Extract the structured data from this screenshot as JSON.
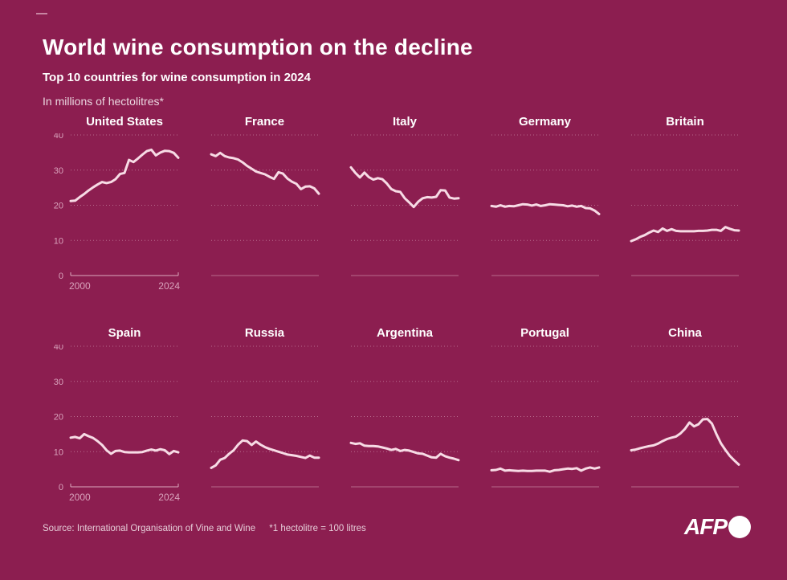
{
  "header": {
    "title": "World wine consumption on the decline",
    "subtitle": "Top 10 countries for wine consumption in 2024",
    "unit_note": "In millions of hectolitres*"
  },
  "footer": {
    "source": "Source: International Organisation of Vine and Wine",
    "note": "*1 hectolitre = 100 litres",
    "logo_text": "AFP"
  },
  "colors": {
    "background": "#8C1E50",
    "line": "#F7DBE5",
    "grid": "#E3B8CA",
    "axis_label": "#D9A3BC"
  },
  "chart_data": {
    "type": "line",
    "title": "Top 10 countries for wine consumption in 2024",
    "ylabel": "Millions of hectolitres",
    "ylim": [
      0,
      40
    ],
    "yticks": [
      0,
      10,
      20,
      30,
      40
    ],
    "x_start": 2000,
    "x_end": 2024,
    "xticks": [
      "2000",
      "2024"
    ],
    "grid": "dotted horizontal gridlines, solid baseline",
    "legend_position": "none",
    "layout": "2 rows x 5 columns of small multiples; y-axis and x-axis labels shown only on first chart of each row",
    "series": [
      {
        "name": "United States",
        "values": [
          21.2,
          21.3,
          22.3,
          23.2,
          24.2,
          25.1,
          25.9,
          26.6,
          26.3,
          26.6,
          27.4,
          28.9,
          29.2,
          32.9,
          32.3,
          33.3,
          34.4,
          35.4,
          35.8,
          34.2,
          35.0,
          35.5,
          35.4,
          34.9,
          33.5
        ]
      },
      {
        "name": "France",
        "values": [
          34.5,
          34.0,
          34.9,
          34.0,
          33.6,
          33.4,
          33.0,
          32.2,
          31.2,
          30.4,
          29.6,
          29.2,
          28.8,
          28.1,
          27.5,
          29.4,
          29.0,
          27.6,
          26.7,
          26.1,
          24.6,
          25.3,
          25.4,
          24.8,
          23.3
        ]
      },
      {
        "name": "Italy",
        "values": [
          30.8,
          29.2,
          27.9,
          29.3,
          28.0,
          27.3,
          27.7,
          27.4,
          26.2,
          24.6,
          24.0,
          23.8,
          22.0,
          20.8,
          19.5,
          21.0,
          22.0,
          22.3,
          22.2,
          22.4,
          24.3,
          24.2,
          22.2,
          21.9,
          22.0
        ]
      },
      {
        "name": "Germany",
        "values": [
          19.8,
          19.6,
          20.0,
          19.6,
          19.8,
          19.7,
          20.0,
          20.3,
          20.2,
          19.9,
          20.2,
          19.8,
          20.0,
          20.3,
          20.2,
          20.1,
          20.0,
          19.7,
          19.9,
          19.6,
          19.8,
          19.2,
          19.1,
          18.5,
          17.5
        ]
      },
      {
        "name": "Britain",
        "values": [
          9.8,
          10.3,
          11.0,
          11.5,
          12.2,
          12.8,
          12.4,
          13.4,
          12.7,
          13.2,
          12.7,
          12.6,
          12.6,
          12.6,
          12.6,
          12.7,
          12.7,
          12.8,
          13.0,
          13.0,
          12.7,
          13.8,
          13.3,
          12.9,
          12.8
        ]
      },
      {
        "name": "Spain",
        "values": [
          14.0,
          14.2,
          13.8,
          15.0,
          14.4,
          13.9,
          13.0,
          11.9,
          10.4,
          9.4,
          10.2,
          10.3,
          9.9,
          9.8,
          9.8,
          9.8,
          9.9,
          10.3,
          10.6,
          10.3,
          10.7,
          10.4,
          9.3,
          10.2,
          9.8
        ]
      },
      {
        "name": "Russia",
        "values": [
          5.4,
          6.1,
          7.7,
          8.2,
          9.4,
          10.4,
          12.0,
          13.2,
          13.0,
          11.9,
          12.9,
          12.0,
          11.3,
          10.8,
          10.4,
          10.0,
          9.6,
          9.2,
          9.0,
          8.8,
          8.5,
          8.2,
          8.9,
          8.3,
          8.3
        ]
      },
      {
        "name": "Argentina",
        "values": [
          12.5,
          12.2,
          12.4,
          11.7,
          11.6,
          11.6,
          11.5,
          11.2,
          10.9,
          10.5,
          10.8,
          10.2,
          10.5,
          10.3,
          9.9,
          9.5,
          9.4,
          8.9,
          8.4,
          8.3,
          9.4,
          8.7,
          8.3,
          8.0,
          7.6
        ]
      },
      {
        "name": "Portugal",
        "values": [
          4.7,
          4.8,
          5.2,
          4.6,
          4.7,
          4.6,
          4.5,
          4.6,
          4.5,
          4.5,
          4.6,
          4.6,
          4.6,
          4.3,
          4.7,
          4.8,
          5.0,
          5.2,
          5.1,
          5.3,
          4.6,
          5.2,
          5.5,
          5.2,
          5.5
        ]
      },
      {
        "name": "China",
        "values": [
          10.4,
          10.6,
          11.0,
          11.3,
          11.6,
          11.8,
          12.3,
          13.0,
          13.6,
          14.0,
          14.3,
          15.2,
          16.5,
          18.3,
          17.2,
          17.8,
          19.2,
          19.3,
          18.0,
          15.0,
          12.4,
          10.5,
          8.8,
          7.5,
          6.3
        ]
      }
    ]
  }
}
